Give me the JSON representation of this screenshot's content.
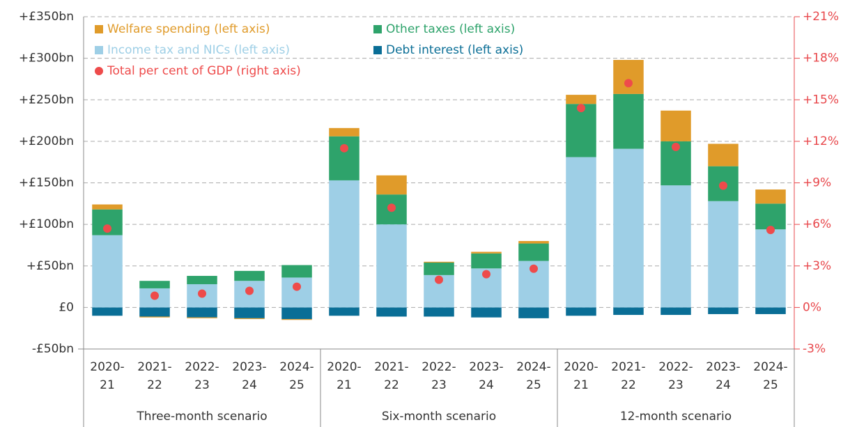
{
  "chart_data": {
    "type": "bar",
    "categories": [
      [
        "2020-",
        "21"
      ],
      [
        "2021-",
        "22"
      ],
      [
        "2022-",
        "23"
      ],
      [
        "2023-",
        "24"
      ],
      [
        "2024-",
        "25"
      ],
      [
        "2020-",
        "21"
      ],
      [
        "2021-",
        "22"
      ],
      [
        "2022-",
        "23"
      ],
      [
        "2023-",
        "24"
      ],
      [
        "2024-",
        "25"
      ],
      [
        "2020-",
        "21"
      ],
      [
        "2021-",
        "22"
      ],
      [
        "2022-",
        "23"
      ],
      [
        "2023-",
        "24"
      ],
      [
        "2024-",
        "25"
      ]
    ],
    "groups": [
      "Three-month scenario",
      "Six-month scenario",
      "12-month scenario"
    ],
    "series": [
      {
        "name": "Welfare spending (left axis)",
        "color": "#e09b2a",
        "values": [
          6,
          -1,
          -1,
          -1,
          -1,
          10,
          23,
          1,
          2,
          3,
          11,
          41,
          37,
          27,
          17
        ]
      },
      {
        "name": "Other taxes (left axis)",
        "color": "#2ea36b",
        "values": [
          31,
          9,
          10,
          12,
          15,
          53,
          36,
          15,
          18,
          21,
          64,
          66,
          53,
          42,
          31
        ]
      },
      {
        "name": "Income tax and NICs (left axis)",
        "color": "#9ecfe6",
        "values": [
          87,
          23,
          28,
          32,
          36,
          153,
          100,
          39,
          47,
          56,
          181,
          191,
          147,
          128,
          94
        ]
      },
      {
        "name": "Debt interest (left axis)",
        "color": "#0a6e96",
        "values": [
          -10,
          -11,
          -12,
          -13,
          -14,
          -10,
          -11,
          -11,
          -12,
          -13,
          -10,
          -9,
          -9,
          -8,
          -8
        ]
      },
      {
        "name": "Total per cent of GDP (right axis)",
        "color": "#ee4b4b",
        "type": "scatter",
        "axis": "y2",
        "values": [
          5.7,
          0.85,
          1.0,
          1.2,
          1.5,
          11.5,
          7.2,
          2.0,
          2.4,
          2.8,
          14.4,
          16.2,
          11.6,
          8.8,
          5.6
        ]
      }
    ],
    "ylim": [
      -50,
      350
    ],
    "yticks": [
      {
        "value": -50,
        "label": "-£50bn"
      },
      {
        "value": 0,
        "label": "£0"
      },
      {
        "value": 50,
        "label": "+£50bn"
      },
      {
        "value": 100,
        "label": "+£100bn"
      },
      {
        "value": 150,
        "label": "+£150bn"
      },
      {
        "value": 200,
        "label": "+£200bn"
      },
      {
        "value": 250,
        "label": "+£250bn"
      },
      {
        "value": 300,
        "label": "+£300bn"
      },
      {
        "value": 350,
        "label": "+£350bn"
      }
    ],
    "y2lim": [
      -3,
      21
    ],
    "y2ticks": [
      {
        "value": -3,
        "label": "-3%"
      },
      {
        "value": 0,
        "label": "0%"
      },
      {
        "value": 3,
        "label": "+3%"
      },
      {
        "value": 6,
        "label": "+6%"
      },
      {
        "value": 9,
        "label": "+9%"
      },
      {
        "value": 12,
        "label": "+12%"
      },
      {
        "value": 15,
        "label": "+15%"
      },
      {
        "value": 18,
        "label": "+18%"
      },
      {
        "value": 21,
        "label": "+21%"
      }
    ],
    "y2color": "#e8474b",
    "grid": true
  }
}
